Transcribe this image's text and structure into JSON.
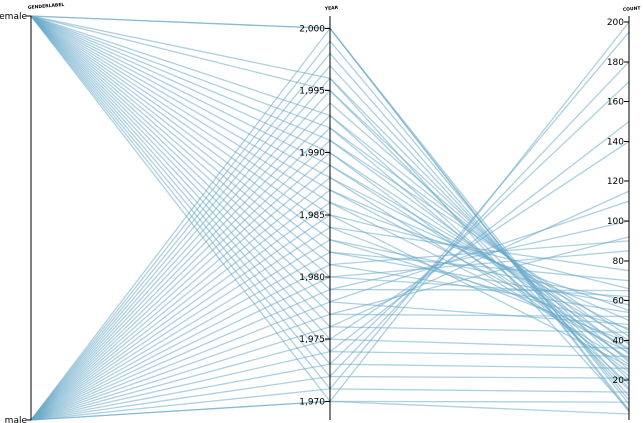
{
  "chart_data": {
    "type": "parallel_coordinates",
    "line_color": "#6aa9cb",
    "axes": [
      {
        "name": "GENDERLABEL",
        "type": "categorical",
        "categories": [
          "female",
          "male"
        ]
      },
      {
        "name": "YEAR",
        "type": "linear",
        "domain": [
          1968.5,
          2001
        ],
        "ticks": [
          1970,
          1975,
          1980,
          1985,
          1990,
          1995,
          2000
        ],
        "tick_labels": [
          "1,970",
          "1,975",
          "1,980",
          "1,985",
          "1,990",
          "1,995",
          "2,000"
        ]
      },
      {
        "name": "COUNT",
        "type": "linear",
        "domain": [
          0,
          203
        ],
        "ticks": [
          20,
          40,
          60,
          80,
          100,
          120,
          140,
          160,
          180,
          200
        ],
        "tick_labels": [
          "20",
          "40",
          "60",
          "80",
          "100",
          "120",
          "140",
          "160",
          "180",
          "200"
        ]
      }
    ],
    "records": [
      {
        "gender": "female",
        "year": 2000,
        "count": 4
      },
      {
        "gender": "female",
        "year": 2000,
        "count": 8
      },
      {
        "gender": "female",
        "year": 1996,
        "count": 5
      },
      {
        "gender": "female",
        "year": 1995,
        "count": 15
      },
      {
        "gender": "female",
        "year": 1993,
        "count": 18
      },
      {
        "gender": "female",
        "year": 1992,
        "count": 22
      },
      {
        "gender": "female",
        "year": 1991,
        "count": 30
      },
      {
        "gender": "female",
        "year": 1990,
        "count": 35
      },
      {
        "gender": "female",
        "year": 1989,
        "count": 40
      },
      {
        "gender": "female",
        "year": 1988,
        "count": 28
      },
      {
        "gender": "female",
        "year": 1987,
        "count": 36
      },
      {
        "gender": "female",
        "year": 1986,
        "count": 55
      },
      {
        "gender": "female",
        "year": 1985,
        "count": 66
      },
      {
        "gender": "female",
        "year": 1984,
        "count": 75
      },
      {
        "gender": "female",
        "year": 1983,
        "count": 60
      },
      {
        "gender": "female",
        "year": 1982,
        "count": 70
      },
      {
        "gender": "female",
        "year": 1981,
        "count": 90
      },
      {
        "gender": "female",
        "year": 1980,
        "count": 85
      },
      {
        "gender": "female",
        "year": 1979,
        "count": 100
      },
      {
        "gender": "female",
        "year": 1978,
        "count": 110
      },
      {
        "gender": "female",
        "year": 1977,
        "count": 92
      },
      {
        "gender": "female",
        "year": 1976,
        "count": 115
      },
      {
        "gender": "female",
        "year": 1975,
        "count": 140
      },
      {
        "gender": "female",
        "year": 1974,
        "count": 150
      },
      {
        "gender": "female",
        "year": 1973,
        "count": 170
      },
      {
        "gender": "female",
        "year": 1972,
        "count": 180
      },
      {
        "gender": "female",
        "year": 1971,
        "count": 195
      },
      {
        "gender": "female",
        "year": 1970,
        "count": 200
      },
      {
        "gender": "male",
        "year": 2000,
        "count": 5
      },
      {
        "gender": "male",
        "year": 1999,
        "count": 10
      },
      {
        "gender": "male",
        "year": 1998,
        "count": 12
      },
      {
        "gender": "male",
        "year": 1997,
        "count": 16
      },
      {
        "gender": "male",
        "year": 1996,
        "count": 20
      },
      {
        "gender": "male",
        "year": 1995,
        "count": 25
      },
      {
        "gender": "male",
        "year": 1994,
        "count": 29
      },
      {
        "gender": "male",
        "year": 1993,
        "count": 33
      },
      {
        "gender": "male",
        "year": 1992,
        "count": 38
      },
      {
        "gender": "male",
        "year": 1991,
        "count": 42
      },
      {
        "gender": "male",
        "year": 1990,
        "count": 24
      },
      {
        "gender": "male",
        "year": 1989,
        "count": 31
      },
      {
        "gender": "male",
        "year": 1988,
        "count": 45
      },
      {
        "gender": "male",
        "year": 1987,
        "count": 50
      },
      {
        "gender": "male",
        "year": 1986,
        "count": 34
      },
      {
        "gender": "male",
        "year": 1985,
        "count": 27
      },
      {
        "gender": "male",
        "year": 1984,
        "count": 39
      },
      {
        "gender": "male",
        "year": 1983,
        "count": 46
      },
      {
        "gender": "male",
        "year": 1982,
        "count": 58
      },
      {
        "gender": "male",
        "year": 1981,
        "count": 54
      },
      {
        "gender": "male",
        "year": 1980,
        "count": 62
      },
      {
        "gender": "male",
        "year": 1979,
        "count": 65
      },
      {
        "gender": "male",
        "year": 1978,
        "count": 48
      },
      {
        "gender": "male",
        "year": 1977,
        "count": 52
      },
      {
        "gender": "male",
        "year": 1976,
        "count": 44
      },
      {
        "gender": "male",
        "year": 1975,
        "count": 36
      },
      {
        "gender": "male",
        "year": 1974,
        "count": 32
      },
      {
        "gender": "male",
        "year": 1973,
        "count": 26
      },
      {
        "gender": "male",
        "year": 1972,
        "count": 21
      },
      {
        "gender": "male",
        "year": 1971,
        "count": 14
      },
      {
        "gender": "male",
        "year": 1970,
        "count": 9
      },
      {
        "gender": "male",
        "year": 1970,
        "count": 3
      }
    ]
  }
}
